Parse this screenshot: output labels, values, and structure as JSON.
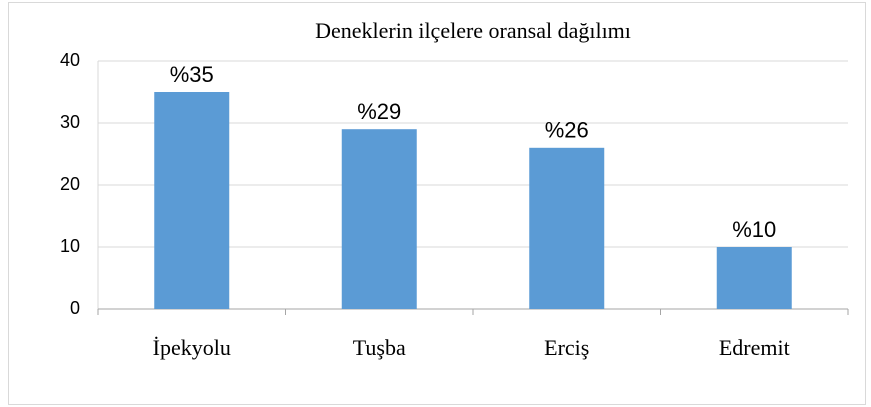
{
  "chart_data": {
    "type": "bar",
    "title": "Deneklerin ilçelere oransal dağılımı",
    "categories": [
      "İpekyolu",
      "Tuşba",
      "Erciş",
      "Edremit"
    ],
    "values": [
      35,
      29,
      26,
      10
    ],
    "value_labels": [
      "%35",
      "%29",
      "%26",
      "%10"
    ],
    "color": "#5b9bd5",
    "ylim": [
      0,
      40
    ],
    "yticks": [
      0,
      10,
      20,
      30,
      40
    ],
    "grid": true
  }
}
